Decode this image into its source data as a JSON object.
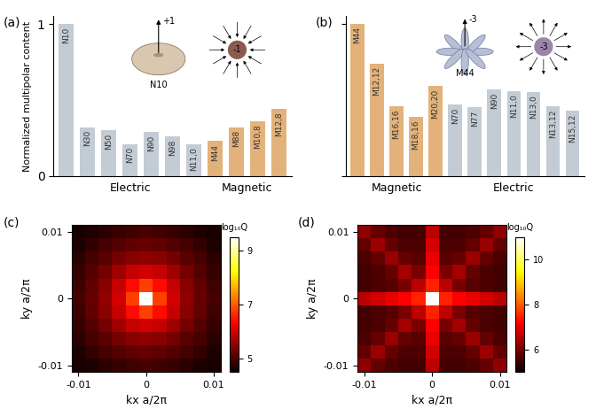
{
  "chart_data": [
    {
      "type": "bar",
      "title": "(a)",
      "y_label": "Normalized multipolar content",
      "categories": [
        "N10",
        "N30",
        "N50",
        "N70",
        "N90",
        "N98",
        "N11,0",
        "M44",
        "M88",
        "M10,8",
        "M12,8"
      ],
      "series": [
        {
          "name": "Electric",
          "color": "#c3ccd4",
          "values": [
            1.0,
            0.32,
            0.3,
            0.21,
            0.29,
            0.26,
            0.21,
            null,
            null,
            null,
            null
          ]
        },
        {
          "name": "Magnetic",
          "color": "#e3b27a",
          "values": [
            null,
            null,
            null,
            null,
            null,
            null,
            null,
            0.23,
            0.32,
            0.36,
            0.44
          ]
        }
      ],
      "ylim": [
        0,
        1.05
      ],
      "yticks": [
        0,
        1
      ],
      "tick_labels": "y",
      "annotations": [
        "+1",
        "N10",
        "-1"
      ]
    },
    {
      "type": "bar",
      "title": "(b)",
      "categories": [
        "M44",
        "M12,12",
        "M16,16",
        "M18,16",
        "M20,20",
        "N70",
        "N77",
        "N90",
        "N11,0",
        "N13,0",
        "N13,12",
        "N15,12"
      ],
      "series": [
        {
          "name": "Magnetic",
          "color": "#e3b27a",
          "values": [
            1.0,
            0.74,
            0.46,
            0.39,
            0.59,
            null,
            null,
            null,
            null,
            null,
            null,
            null
          ]
        },
        {
          "name": "Electric",
          "color": "#c3ccd4",
          "values": [
            null,
            null,
            null,
            null,
            null,
            0.47,
            0.45,
            0.57,
            0.56,
            0.55,
            0.46,
            0.43
          ]
        }
      ],
      "ylim": [
        0,
        1.05
      ],
      "yticks": [
        0,
        1
      ],
      "tick_labels": false,
      "annotations": [
        "-3",
        "M44",
        "-3"
      ]
    },
    {
      "type": "heatmap",
      "title": "(c)",
      "x_label": "kx a/2π",
      "y_label": "ky a/2π",
      "x": [
        -0.01,
        -0.008,
        -0.006,
        -0.004,
        -0.002,
        0,
        0.002,
        0.004,
        0.006,
        0.008,
        0.01
      ],
      "y": [
        -0.01,
        -0.008,
        -0.006,
        -0.004,
        -0.002,
        0,
        0.002,
        0.004,
        0.006,
        0.008,
        0.01
      ],
      "xlim": [
        -0.011,
        0.011
      ],
      "ylim": [
        -0.011,
        0.011
      ],
      "xticks": [
        -0.01,
        0,
        0.01
      ],
      "yticks": [
        -0.01,
        0,
        0.01
      ],
      "cells": [
        [
          4.6,
          4.65,
          4.75,
          4.85,
          4.9,
          4.95,
          4.9,
          4.85,
          4.75,
          4.65,
          4.6
        ],
        [
          4.65,
          4.8,
          4.95,
          5.05,
          5.15,
          5.2,
          5.15,
          5.05,
          4.95,
          4.8,
          4.65
        ],
        [
          4.75,
          4.95,
          5.1,
          5.3,
          5.45,
          5.5,
          5.45,
          5.3,
          5.1,
          4.95,
          4.75
        ],
        [
          4.85,
          5.05,
          5.3,
          5.6,
          5.9,
          6.0,
          5.9,
          5.6,
          5.3,
          5.05,
          4.85
        ],
        [
          4.9,
          5.15,
          5.45,
          5.9,
          6.4,
          6.8,
          6.4,
          5.9,
          5.45,
          5.15,
          4.9
        ],
        [
          4.95,
          5.2,
          5.5,
          6.0,
          6.8,
          9.5,
          6.8,
          6.0,
          5.5,
          5.2,
          4.95
        ],
        [
          4.9,
          5.15,
          5.45,
          5.9,
          6.4,
          6.8,
          6.4,
          5.9,
          5.45,
          5.15,
          4.9
        ],
        [
          4.85,
          5.05,
          5.3,
          5.6,
          5.9,
          6.0,
          5.9,
          5.6,
          5.3,
          5.05,
          4.85
        ],
        [
          4.75,
          4.95,
          5.1,
          5.3,
          5.45,
          5.5,
          5.45,
          5.3,
          5.1,
          4.95,
          4.75
        ],
        [
          4.65,
          4.8,
          4.95,
          5.05,
          5.15,
          5.2,
          5.15,
          5.05,
          4.95,
          4.8,
          4.65
        ],
        [
          4.6,
          4.65,
          4.75,
          4.85,
          4.9,
          4.95,
          4.9,
          4.85,
          4.75,
          4.65,
          4.6
        ]
      ],
      "colorbar": {
        "label": "log₁₀Q",
        "range": [
          4.5,
          9.5
        ],
        "ticks": [
          5,
          7,
          9
        ]
      }
    },
    {
      "type": "heatmap",
      "title": "(d)",
      "x_label": "kx a/2π",
      "y_label": "ky a/2π",
      "x": [
        -0.01,
        -0.008,
        -0.006,
        -0.004,
        -0.002,
        0,
        0.002,
        0.004,
        0.006,
        0.008,
        0.01
      ],
      "y": [
        -0.01,
        -0.008,
        -0.006,
        -0.004,
        -0.002,
        0,
        0.002,
        0.004,
        0.006,
        0.008,
        0.01
      ],
      "xlim": [
        -0.011,
        0.011
      ],
      "ylim": [
        -0.011,
        0.011
      ],
      "xticks": [
        -0.01,
        0,
        0.01
      ],
      "yticks": [
        -0.01,
        0,
        0.01
      ],
      "cells": [
        [
          6.2,
          5.8,
          5.6,
          5.5,
          5.5,
          6.6,
          5.5,
          5.5,
          5.6,
          5.8,
          6.2
        ],
        [
          5.8,
          6.3,
          5.8,
          5.6,
          5.6,
          6.8,
          5.6,
          5.6,
          5.8,
          6.3,
          5.8
        ],
        [
          5.6,
          5.8,
          6.3,
          5.8,
          5.7,
          7.0,
          5.7,
          5.8,
          6.3,
          5.8,
          5.6
        ],
        [
          5.5,
          5.6,
          5.8,
          6.4,
          6.0,
          7.2,
          6.0,
          6.4,
          5.8,
          5.6,
          5.5
        ],
        [
          5.5,
          5.6,
          5.7,
          6.0,
          6.6,
          7.5,
          6.6,
          6.0,
          5.7,
          5.6,
          5.5
        ],
        [
          6.6,
          6.8,
          7.0,
          7.2,
          7.5,
          11,
          7.5,
          7.2,
          7.0,
          6.8,
          6.6
        ],
        [
          5.5,
          5.6,
          5.7,
          6.0,
          6.6,
          7.5,
          6.6,
          6.0,
          5.7,
          5.6,
          5.5
        ],
        [
          5.5,
          5.6,
          5.8,
          6.4,
          6.0,
          7.2,
          6.0,
          6.4,
          5.8,
          5.6,
          5.5
        ],
        [
          5.6,
          5.8,
          6.3,
          5.8,
          5.7,
          7.0,
          5.7,
          5.8,
          6.3,
          5.8,
          5.6
        ],
        [
          5.8,
          6.3,
          5.8,
          5.6,
          5.6,
          6.8,
          5.6,
          5.6,
          5.8,
          6.3,
          5.8
        ],
        [
          6.2,
          5.8,
          5.6,
          5.5,
          5.5,
          6.6,
          5.5,
          5.5,
          5.6,
          5.8,
          6.2
        ]
      ],
      "colorbar": {
        "label": "log₁₀Q",
        "range": [
          5,
          11
        ],
        "ticks": [
          6,
          8,
          10
        ]
      }
    }
  ]
}
